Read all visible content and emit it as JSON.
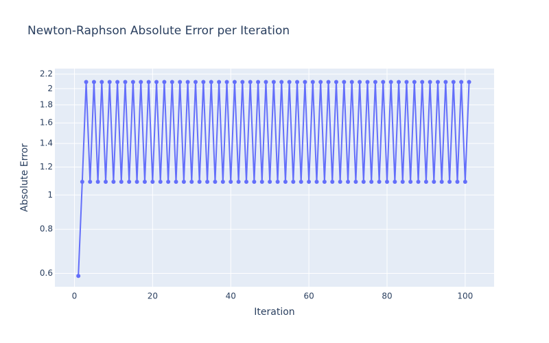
{
  "chart_data": {
    "type": "line",
    "title": "Newton-Raphson Absolute Error per Iteration",
    "x_label": "Iteration",
    "y_label": "Absolute Error",
    "yscale": "log",
    "grid": true,
    "color": "#636efa",
    "xlim": [
      -5,
      107.4
    ],
    "xticks": [
      0,
      20,
      40,
      60,
      80,
      100
    ],
    "ylim": [
      0.55,
      2.28
    ],
    "yticks": [
      0.6,
      0.8,
      1,
      1.2,
      1.4,
      1.6,
      1.8,
      2,
      2.2
    ],
    "x": [
      1,
      2,
      3,
      4,
      5,
      6,
      7,
      8,
      9,
      10,
      11,
      12,
      13,
      14,
      15,
      16,
      17,
      18,
      19,
      20,
      21,
      22,
      23,
      24,
      25,
      26,
      27,
      28,
      29,
      30,
      31,
      32,
      33,
      34,
      35,
      36,
      37,
      38,
      39,
      40,
      41,
      42,
      43,
      44,
      45,
      46,
      47,
      48,
      49,
      50,
      51,
      52,
      53,
      54,
      55,
      56,
      57,
      58,
      59,
      60,
      61,
      62,
      63,
      64,
      65,
      66,
      67,
      68,
      69,
      70,
      71,
      72,
      73,
      74,
      75,
      76,
      77,
      78,
      79,
      80,
      81,
      82,
      83,
      84,
      85,
      86,
      87,
      88,
      89,
      90,
      91,
      92,
      93,
      94,
      95,
      96,
      97,
      98,
      99,
      100,
      101
    ],
    "values": [
      0.59,
      1.09,
      2.09,
      1.09,
      2.09,
      1.09,
      2.09,
      1.09,
      2.09,
      1.09,
      2.09,
      1.09,
      2.09,
      1.09,
      2.09,
      1.09,
      2.09,
      1.09,
      2.09,
      1.09,
      2.09,
      1.09,
      2.09,
      1.09,
      2.09,
      1.09,
      2.09,
      1.09,
      2.09,
      1.09,
      2.09,
      1.09,
      2.09,
      1.09,
      2.09,
      1.09,
      2.09,
      1.09,
      2.09,
      1.09,
      2.09,
      1.09,
      2.09,
      1.09,
      2.09,
      1.09,
      2.09,
      1.09,
      2.09,
      1.09,
      2.09,
      1.09,
      2.09,
      1.09,
      2.09,
      1.09,
      2.09,
      1.09,
      2.09,
      1.09,
      2.09,
      1.09,
      2.09,
      1.09,
      2.09,
      1.09,
      2.09,
      1.09,
      2.09,
      1.09,
      2.09,
      1.09,
      2.09,
      1.09,
      2.09,
      1.09,
      2.09,
      1.09,
      2.09,
      1.09,
      2.09,
      1.09,
      2.09,
      1.09,
      2.09,
      1.09,
      2.09,
      1.09,
      2.09,
      1.09,
      2.09,
      1.09,
      2.09,
      1.09,
      2.09,
      1.09,
      2.09,
      1.09,
      2.09,
      1.09,
      2.09
    ]
  }
}
